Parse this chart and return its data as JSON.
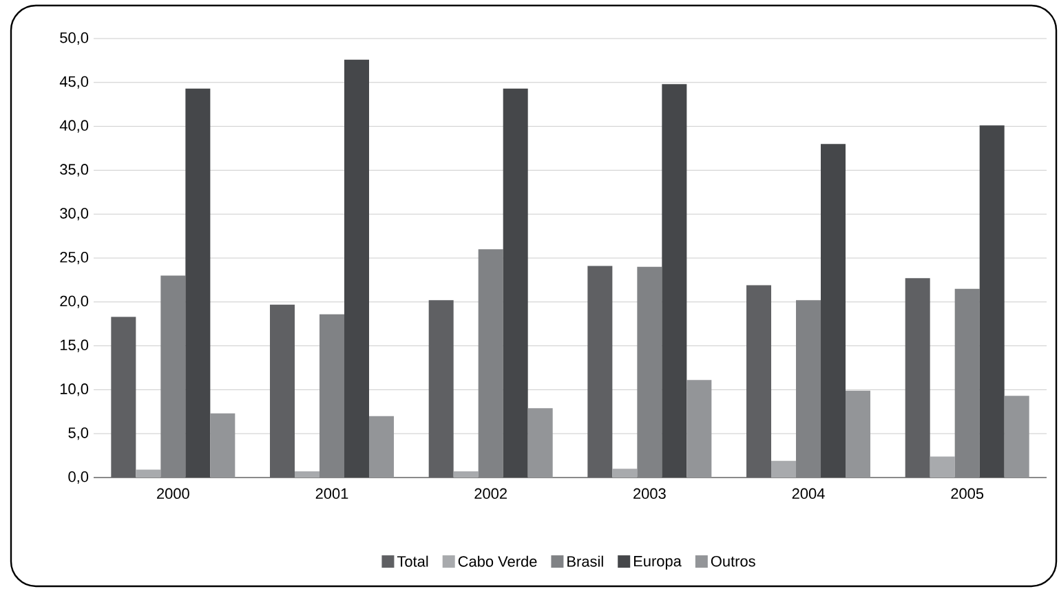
{
  "chart_data": {
    "type": "bar",
    "categories": [
      "2000",
      "2001",
      "2002",
      "2003",
      "2004",
      "2005"
    ],
    "series": [
      {
        "name": "Total",
        "color": "#5f6063",
        "values": [
          18.3,
          19.7,
          20.2,
          24.1,
          21.9,
          22.7
        ]
      },
      {
        "name": "Cabo Verde",
        "color": "#a8aaad",
        "values": [
          0.9,
          0.7,
          0.7,
          1.0,
          1.9,
          2.4
        ]
      },
      {
        "name": "Brasil",
        "color": "#808285",
        "values": [
          23.0,
          18.6,
          26.0,
          24.0,
          20.2,
          21.5
        ]
      },
      {
        "name": "Europa",
        "color": "#45474a",
        "values": [
          44.3,
          47.6,
          44.3,
          44.8,
          38.0,
          40.1
        ]
      },
      {
        "name": "Outros",
        "color": "#939598",
        "values": [
          7.3,
          7.0,
          7.9,
          11.1,
          9.9,
          9.3
        ]
      }
    ],
    "ylim": [
      0,
      50
    ],
    "yticks": [
      {
        "value": 0,
        "label": "0,0"
      },
      {
        "value": 5,
        "label": "5,0"
      },
      {
        "value": 10,
        "label": "10,0"
      },
      {
        "value": 15,
        "label": "15,0"
      },
      {
        "value": 20,
        "label": "20,0"
      },
      {
        "value": 25,
        "label": "25,0"
      },
      {
        "value": 30,
        "label": "30,0"
      },
      {
        "value": 35,
        "label": "35,0"
      },
      {
        "value": 40,
        "label": "40,0"
      },
      {
        "value": 45,
        "label": "45,0"
      },
      {
        "value": 50,
        "label": "50,0"
      }
    ],
    "grid": "y",
    "legend": "bottom"
  }
}
